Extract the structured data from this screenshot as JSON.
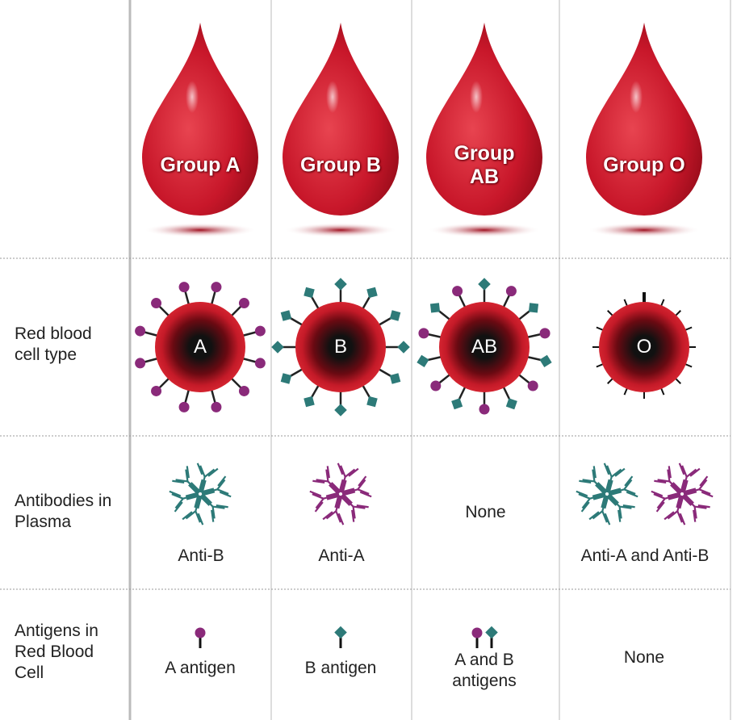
{
  "row_labels": [
    "Red blood cell type",
    "Antibodies in Plasma",
    "Antigens in Red Blood Cell"
  ],
  "groups": [
    {
      "drop": "Group A",
      "cell": "A",
      "antibodies": "Anti-B",
      "antigens": "A antigen"
    },
    {
      "drop": "Group B",
      "cell": "B",
      "antibodies": "Anti-A",
      "antigens": "B antigen"
    },
    {
      "drop": "Group AB",
      "cell": "AB",
      "antibodies": "None",
      "antigens": "A and B antigens"
    },
    {
      "drop": "Group O",
      "cell": "O",
      "antibodies": "Anti-A and Anti-B",
      "antigens": "None"
    }
  ]
}
